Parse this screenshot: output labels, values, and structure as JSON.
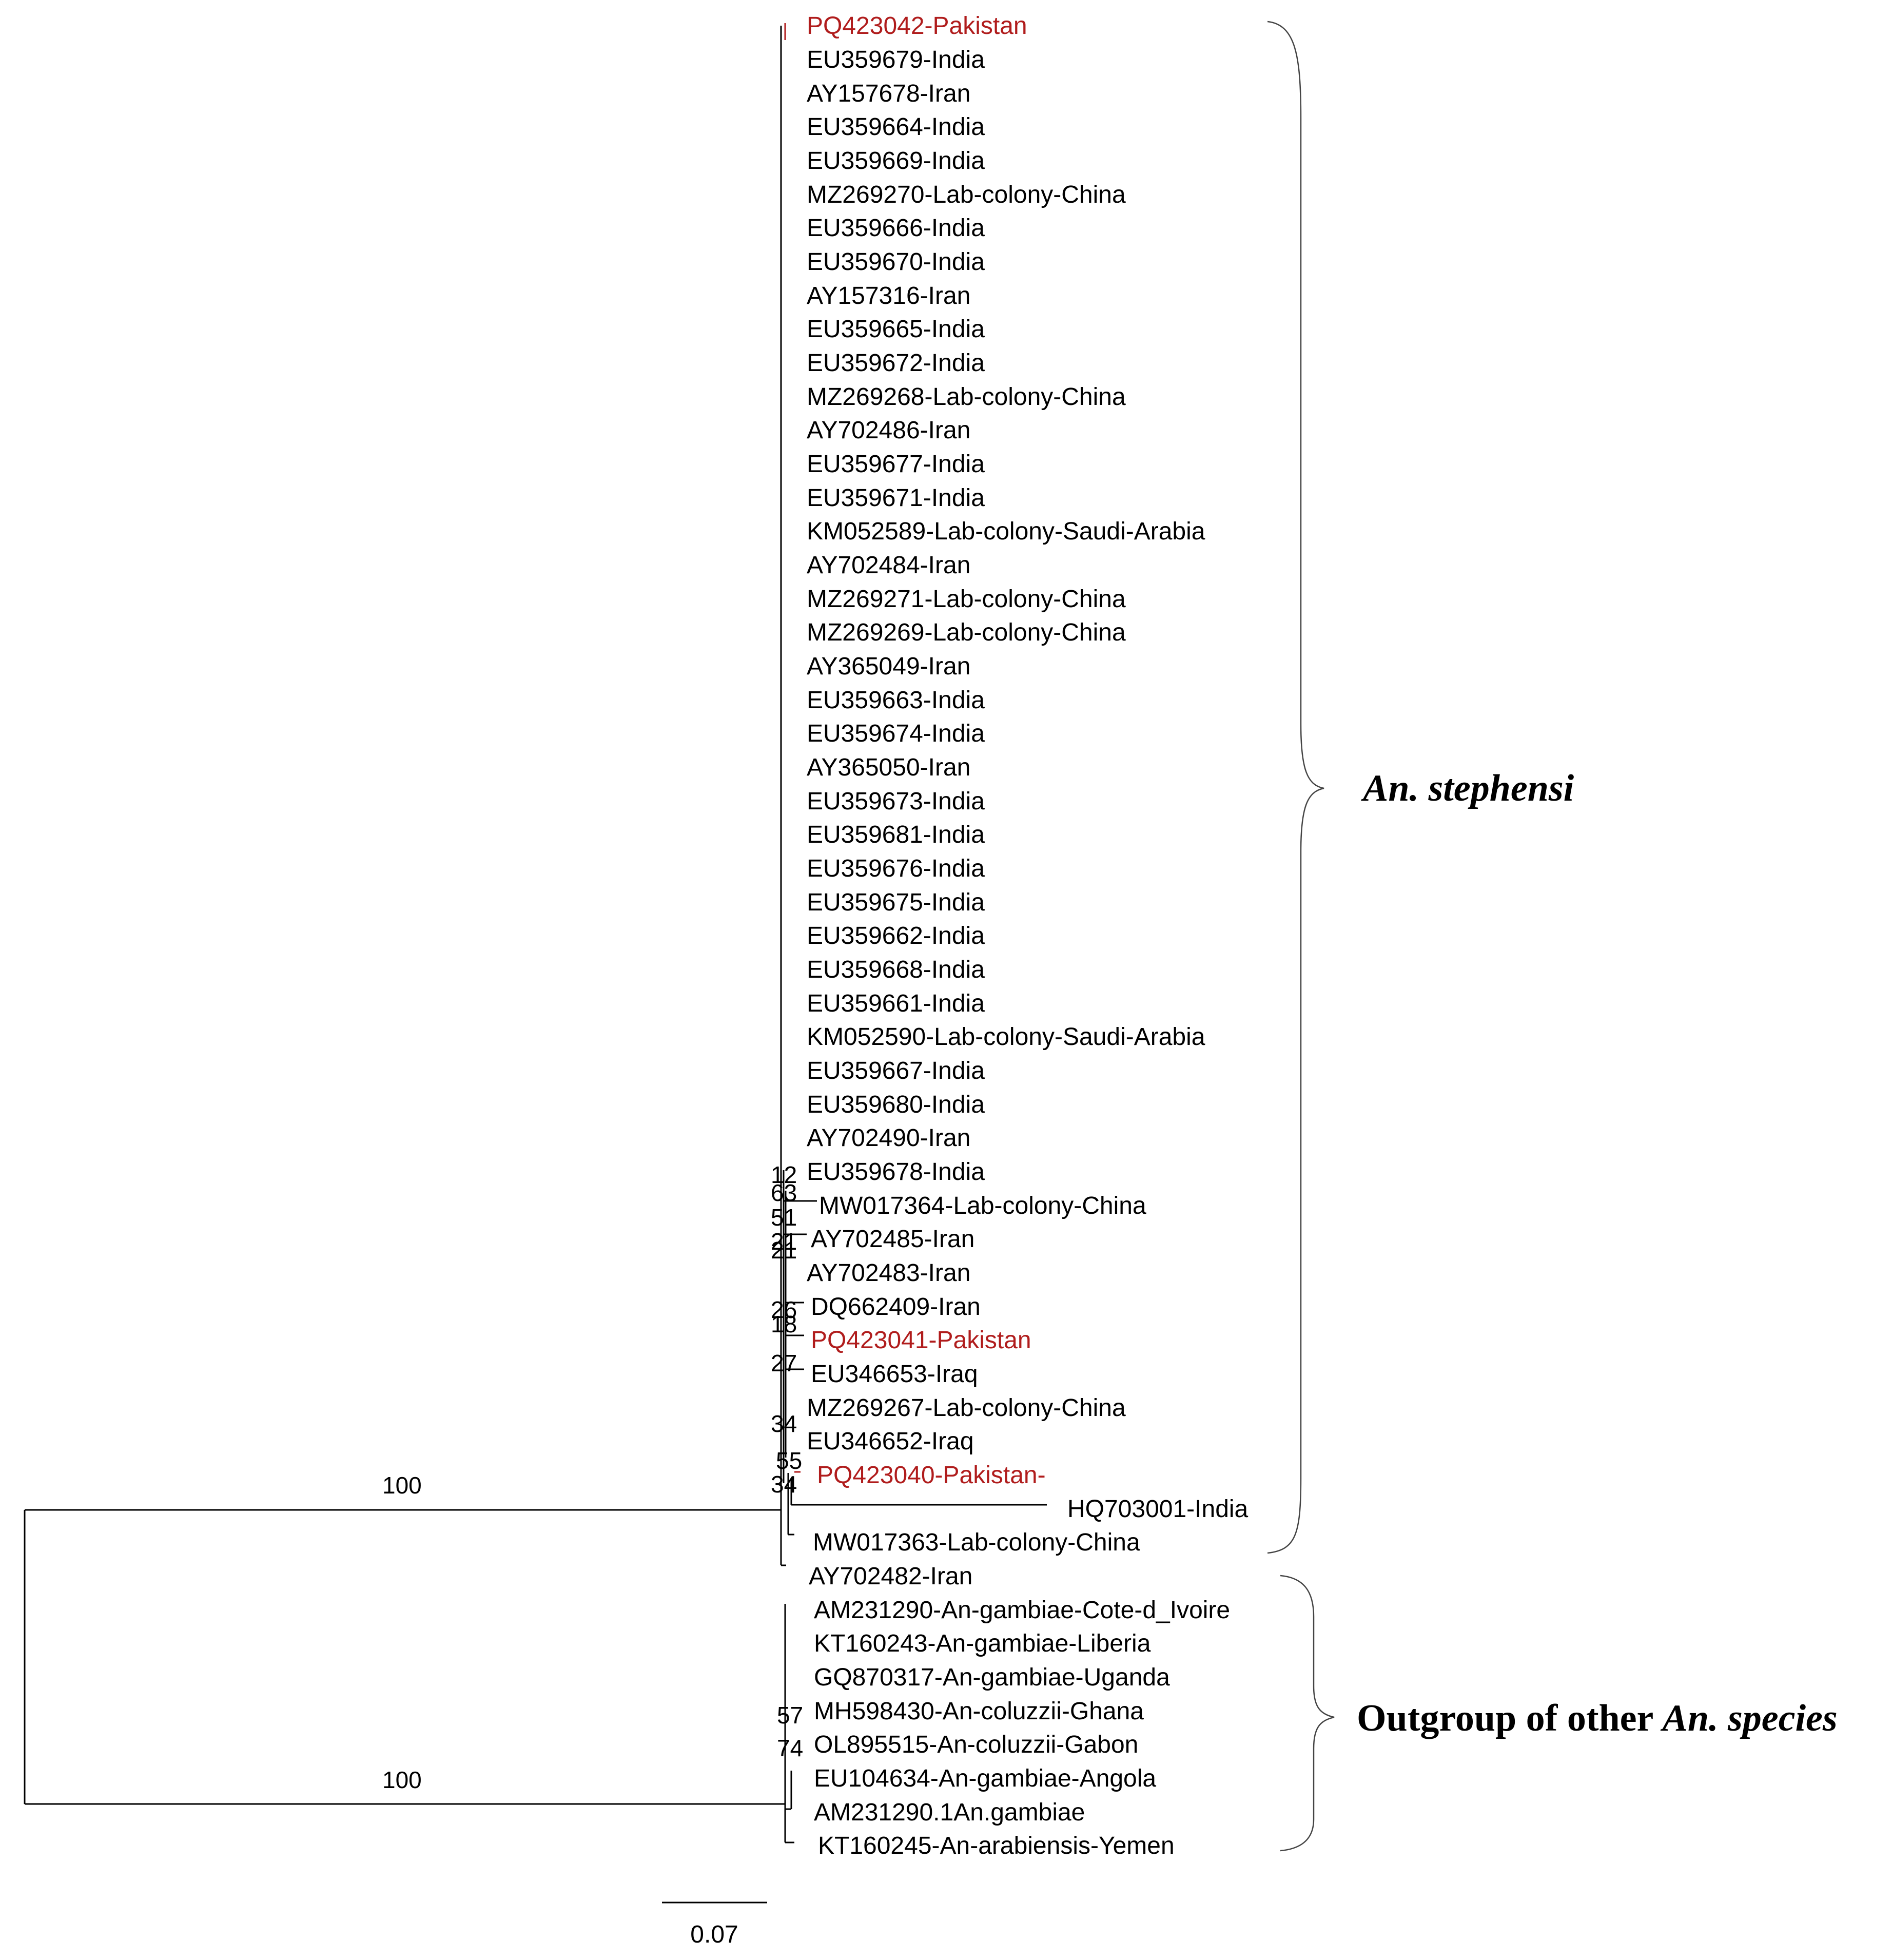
{
  "colors": {
    "default": "#000000",
    "highlight": "#b01c1c"
  },
  "leaves": [
    {
      "label": "PQ423042-Pakistan",
      "highlight": true
    },
    {
      "label": "EU359679-India"
    },
    {
      "label": "AY157678-Iran"
    },
    {
      "label": "EU359664-India"
    },
    {
      "label": "EU359669-India"
    },
    {
      "label": "MZ269270-Lab-colony-China"
    },
    {
      "label": "EU359666-India"
    },
    {
      "label": "EU359670-India"
    },
    {
      "label": "AY157316-Iran"
    },
    {
      "label": "EU359665-India"
    },
    {
      "label": "EU359672-India"
    },
    {
      "label": "MZ269268-Lab-colony-China"
    },
    {
      "label": "AY702486-Iran"
    },
    {
      "label": "EU359677-India"
    },
    {
      "label": "EU359671-India"
    },
    {
      "label": "KM052589-Lab-colony-Saudi-Arabia"
    },
    {
      "label": "AY702484-Iran"
    },
    {
      "label": "MZ269271-Lab-colony-China"
    },
    {
      "label": "MZ269269-Lab-colony-China"
    },
    {
      "label": "AY365049-Iran"
    },
    {
      "label": "EU359663-India"
    },
    {
      "label": "EU359674-India"
    },
    {
      "label": "AY365050-Iran"
    },
    {
      "label": "EU359673-India"
    },
    {
      "label": "EU359681-India"
    },
    {
      "label": "EU359676-India"
    },
    {
      "label": "EU359675-India"
    },
    {
      "label": "EU359662-India"
    },
    {
      "label": "EU359668-India"
    },
    {
      "label": "EU359661-India"
    },
    {
      "label": "KM052590-Lab-colony-Saudi-Arabia"
    },
    {
      "label": "EU359667-India"
    },
    {
      "label": "EU359680-India"
    },
    {
      "label": "AY702490-Iran"
    },
    {
      "label": "EU359678-India"
    },
    {
      "label": "MW017364-Lab-colony-China"
    },
    {
      "label": "AY702485-Iran"
    },
    {
      "label": "AY702483-Iran"
    },
    {
      "label": "DQ662409-Iran"
    },
    {
      "label": "PQ423041-Pakistan",
      "highlight": true
    },
    {
      "label": "EU346653-Iraq"
    },
    {
      "label": "MZ269267-Lab-colony-China"
    },
    {
      "label": "EU346652-Iraq"
    },
    {
      "label": "PQ423040-Pakistan-",
      "highlight": true
    },
    {
      "label": "HQ703001-India"
    },
    {
      "label": "MW017363-Lab-colony-China"
    },
    {
      "label": "AY702482-Iran"
    },
    {
      "label": "AM231290-An-gambiae-Cote-d_Ivoire"
    },
    {
      "label": "KT160243-An-gambiae-Liberia"
    },
    {
      "label": "GQ870317-An-gambiae-Uganda"
    },
    {
      "label": "MH598430-An-coluzzii-Ghana"
    },
    {
      "label": "OL895515-An-coluzzii-Gabon"
    },
    {
      "label": "EU104634-An-gambiae-Angola"
    },
    {
      "label": "AM231290.1An.gambiae"
    },
    {
      "label": "KT160245-An-arabiensis-Yemen"
    }
  ],
  "bootstrap": [
    "100",
    "100",
    "12",
    "63",
    "51",
    "21",
    "21",
    "26",
    "18",
    "27",
    "34",
    "55",
    "34",
    "57",
    "74"
  ],
  "groups": {
    "ingroup_name": "An. stephensi",
    "outgroup_prefix": "Outgroup of other",
    "outgroup_species": "An. species"
  },
  "scale_bar": {
    "label": "0.07"
  }
}
